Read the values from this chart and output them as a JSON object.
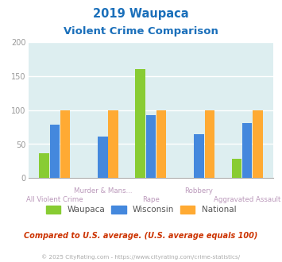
{
  "title_line1": "2019 Waupaca",
  "title_line2": "Violent Crime Comparison",
  "title_color": "#1a6fba",
  "categories": [
    "All Violent Crime",
    "Murder & Mans...",
    "Rape",
    "Robbery",
    "Aggravated Assault"
  ],
  "series": {
    "Waupaca": [
      37,
      null,
      160,
      null,
      29
    ],
    "Wisconsin": [
      78,
      61,
      93,
      64,
      81
    ],
    "National": [
      100,
      100,
      100,
      100,
      100
    ]
  },
  "colors": {
    "Waupaca": "#88cc33",
    "Wisconsin": "#4488dd",
    "National": "#ffaa33"
  },
  "ylim": [
    0,
    200
  ],
  "yticks": [
    0,
    50,
    100,
    150,
    200
  ],
  "plot_bg": "#ddeef0",
  "grid_color": "#ffffff",
  "footnote": "Compared to U.S. average. (U.S. average equals 100)",
  "footnote_color": "#cc3300",
  "copyright": "© 2025 CityRating.com - https://www.cityrating.com/crime-statistics/",
  "copyright_color": "#aaaaaa",
  "bar_width": 0.22,
  "group_positions": [
    0,
    1,
    2,
    3,
    4
  ],
  "label_color": "#bb99aa",
  "label_color2": "#cc9966"
}
